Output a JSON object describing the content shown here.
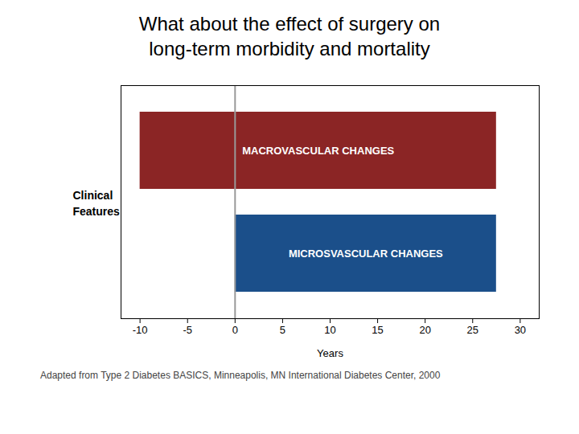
{
  "chart_data": {
    "type": "timeline",
    "title": "What about the effect of surgery on",
    "subtitle": "long-term morbidity and mortality",
    "x_label": "Years",
    "y_label": "Clinical Features",
    "caption": "Adapted  from Type 2 Diabetes BASICS, Minneapolis, MN International Diabetes Center, 2000",
    "series": [
      {
        "name": "MACROVASCULAR CHANGES",
        "color": "#8B2525",
        "start": -10,
        "end": 27.5
      },
      {
        "name": "MICROSVASCULAR CHANGES",
        "color": "#1B4F8A",
        "start": 0,
        "end": 27.5
      }
    ],
    "annotations": [
      {
        "type": "vline",
        "x": 0,
        "color": "#999999"
      }
    ],
    "xlim": [
      -12,
      32
    ],
    "xticks": [
      -10,
      -5,
      0,
      5,
      10,
      15,
      20,
      25,
      30
    ],
    "data_labels": true,
    "tick_labels": "x",
    "grid": false
  }
}
